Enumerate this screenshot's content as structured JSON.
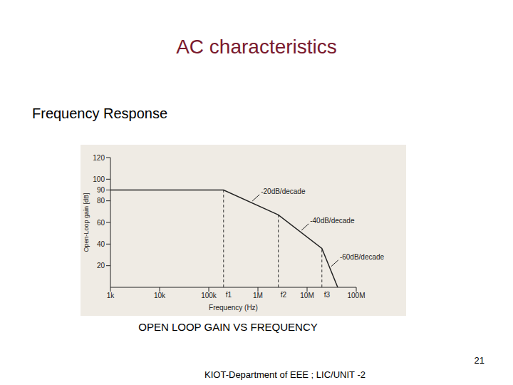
{
  "page": {
    "title": "AC characteristics",
    "subtitle": "Frequency Response",
    "caption": "OPEN LOOP GAIN VS FREQUENCY",
    "page_number": "21",
    "footer": "KIOT-Department of EEE ; LIC/UNIT -2"
  },
  "chart_data": {
    "type": "line",
    "x_label": "Frequency (Hz)",
    "y_label": "Open-Loop gain [dB]",
    "log": "x",
    "grid": false,
    "color": "#222222",
    "x": [
      1000,
      200000,
      2600000,
      20000000,
      42000000
    ],
    "values": [
      90,
      90,
      67,
      36,
      0
    ],
    "xlim": [
      1000,
      100000000
    ],
    "xticks": [
      {
        "value": 1000,
        "label": "1k"
      },
      {
        "value": 10000,
        "label": "10k"
      },
      {
        "value": 100000,
        "label": "100k"
      },
      {
        "value": 1000000,
        "label": "1M"
      },
      {
        "value": 10000000,
        "label": "10M"
      },
      {
        "value": 100000000,
        "label": "100M"
      }
    ],
    "ylim": [
      0,
      120
    ],
    "yticks": [
      20,
      40,
      60,
      80,
      90,
      100,
      120
    ],
    "markers": [
      {
        "label": "f1",
        "x": 200000
      },
      {
        "label": "f2",
        "x": 2600000
      },
      {
        "label": "f3",
        "x": 20000000
      }
    ],
    "annotations": [
      "-20dB/decade",
      "-40dB/decade",
      "-60dB/decade"
    ]
  }
}
